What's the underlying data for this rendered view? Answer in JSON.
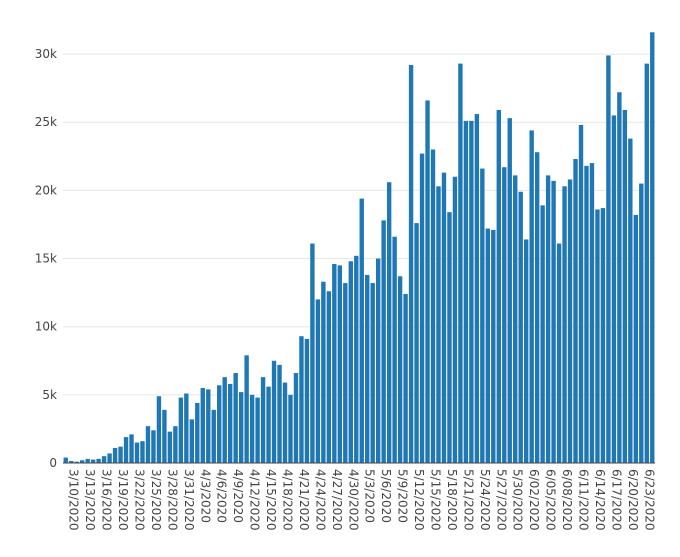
{
  "chart_data": {
    "type": "bar",
    "title": "",
    "xlabel": "",
    "ylabel": "",
    "bar_color": "#1f77b4",
    "grid_color": "#e6e6e6",
    "ylim": [
      0,
      32500
    ],
    "yticks": [
      0,
      5000,
      10000,
      15000,
      20000,
      25000,
      30000
    ],
    "ytick_labels": [
      "0",
      "5k",
      "10k",
      "15k",
      "20k",
      "25k",
      "30k"
    ],
    "x_start": "3/10/2020",
    "xtick_labels": [
      "3/10/2020",
      "3/13/2020",
      "3/16/2020",
      "3/19/2020",
      "3/22/2020",
      "3/25/2020",
      "3/28/2020",
      "3/31/2020",
      "4/3/2020",
      "4/6/2020",
      "4/9/2020",
      "4/12/2020",
      "4/15/2020",
      "4/18/2020",
      "4/21/2020",
      "4/24/2020",
      "4/27/2020",
      "4/30/2020",
      "5/3/2020",
      "5/6/2020",
      "5/9/2020",
      "5/12/2020",
      "5/15/2020",
      "5/18/2020",
      "5/21/2020",
      "5/24/2020",
      "5/27/2020",
      "5/30/2020",
      "6/02/2020",
      "6/05/2020",
      "6/08/2020",
      "6/11/2020",
      "6/14/2020",
      "6/17/2020",
      "6/20/2020",
      "6/23/2020"
    ],
    "values": [
      400,
      150,
      100,
      200,
      300,
      250,
      300,
      500,
      700,
      1100,
      1200,
      1900,
      2100,
      1500,
      1600,
      2700,
      2400,
      4900,
      3900,
      2300,
      2700,
      4800,
      5100,
      3200,
      4400,
      5500,
      5400,
      3900,
      5700,
      6300,
      5800,
      6600,
      5200,
      7900,
      5000,
      4800,
      6300,
      5600,
      7500,
      7200,
      5900,
      5000,
      6600,
      9300,
      9100,
      16100,
      12000,
      13300,
      12600,
      14600,
      14500,
      13200,
      14800,
      15200,
      19400,
      13800,
      13200,
      15000,
      17800,
      20600,
      16600,
      13700,
      12400,
      29200,
      17600,
      22700,
      26600,
      23000,
      20300,
      21300,
      18400,
      21000,
      29300,
      25100,
      25100,
      25600,
      21600,
      17200,
      17100,
      25900,
      21700,
      25300,
      21100,
      19900,
      16400,
      24400,
      22800,
      18900,
      21100,
      20700,
      16100,
      20300,
      20800,
      22300,
      24800,
      21800,
      22000,
      18600,
      18700,
      29900,
      25500,
      27200,
      25900,
      23800,
      18200,
      20500,
      29300,
      31600
    ]
  }
}
